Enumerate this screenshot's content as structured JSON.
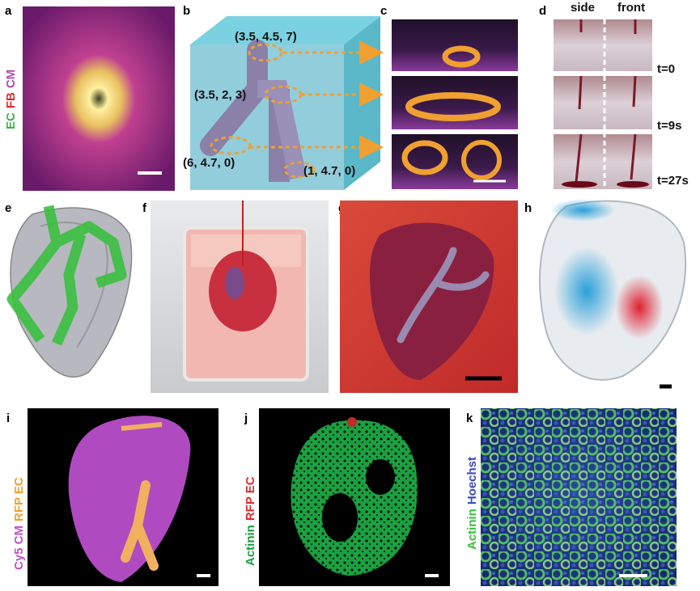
{
  "panels": [
    {
      "letter": "a",
      "stain": [
        "EC",
        "FB",
        "CM"
      ]
    },
    {
      "letter": "b",
      "coordinates": [
        "(3.5, 4.5, 7)",
        "(3.5, 2, 3)",
        "(6, 4.7, 0)",
        "(1, 4.7, 0)"
      ]
    },
    {
      "letter": "c"
    },
    {
      "letter": "d",
      "columns": [
        "side",
        "front"
      ],
      "times": [
        "t=0",
        "t=9s",
        "t=27s"
      ]
    },
    {
      "letter": "e"
    },
    {
      "letter": "f"
    },
    {
      "letter": "g"
    },
    {
      "letter": "h"
    },
    {
      "letter": "i",
      "stain": [
        "Cy5 CM",
        "RFP EC"
      ]
    },
    {
      "letter": "j",
      "stain": [
        "Actinin",
        "RFP EC"
      ]
    },
    {
      "letter": "k",
      "stain": [
        "Actinin",
        "Hoechst"
      ]
    }
  ]
}
